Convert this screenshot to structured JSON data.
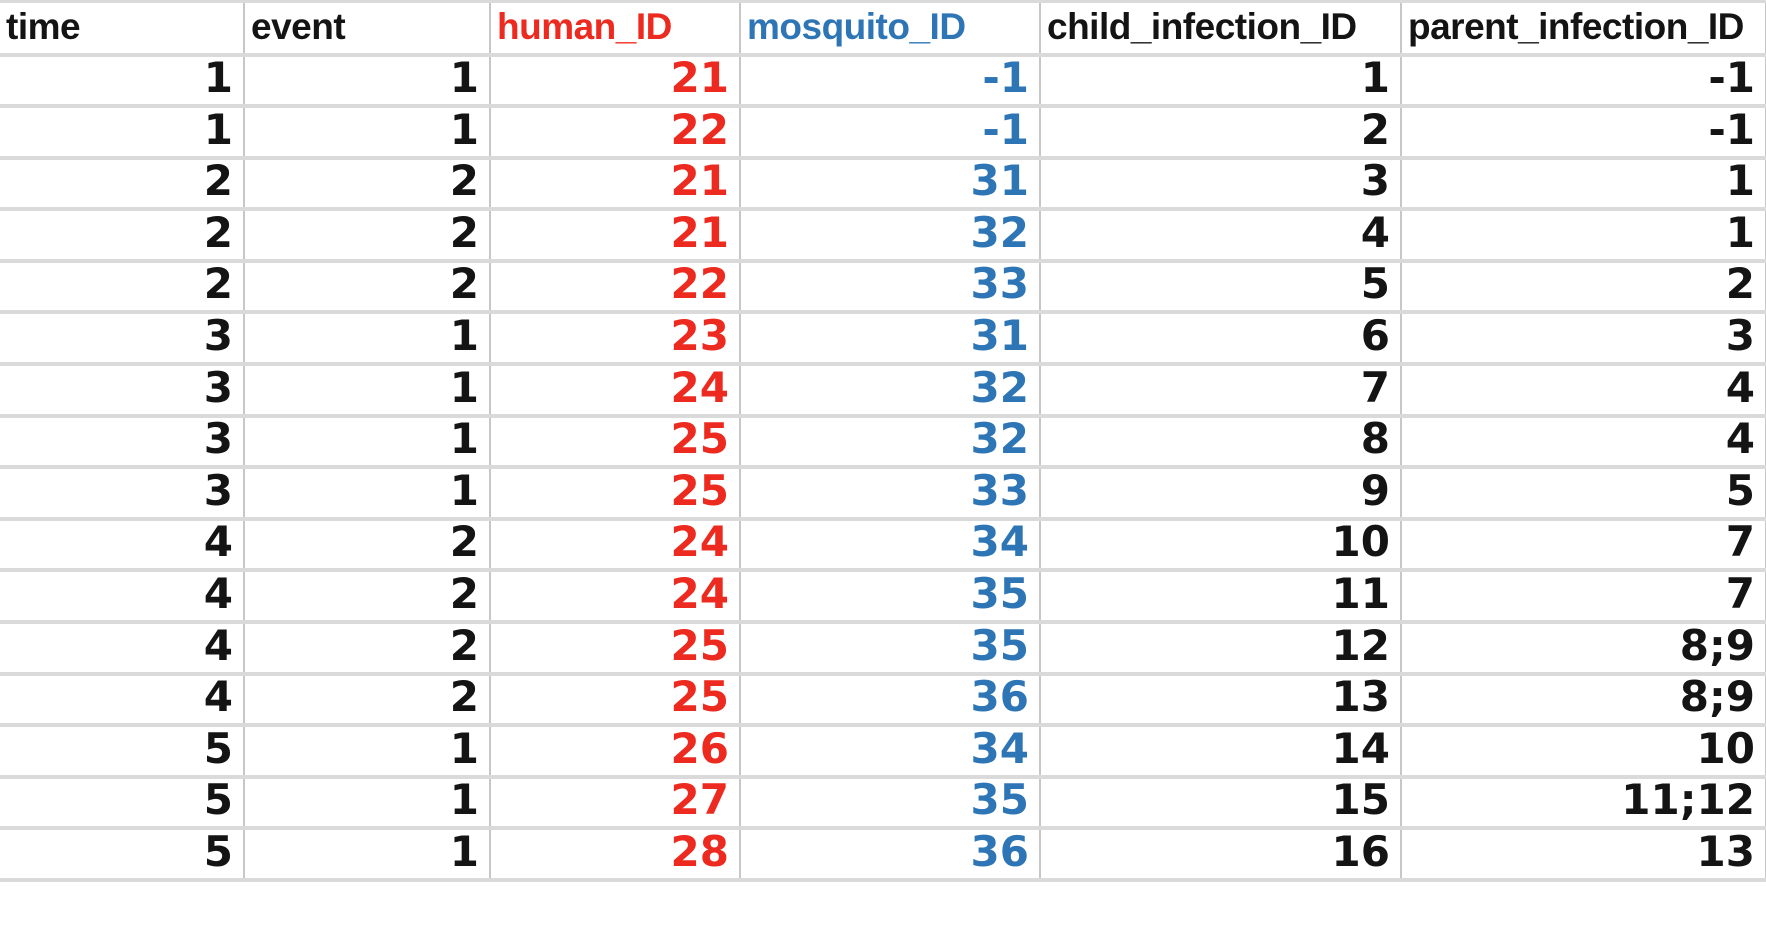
{
  "colors": {
    "text_default": "#141414",
    "human_id_accent": "#ed2a1f",
    "mosquito_id_accent": "#2e75b6",
    "grid_vertical_line": "#c7c7c7",
    "grid_horizontal_line": "#dadada",
    "background": "#ffffff"
  },
  "table": {
    "columns": [
      {
        "key": "time",
        "label": "time",
        "color": "#141414"
      },
      {
        "key": "event",
        "label": "event",
        "color": "#141414"
      },
      {
        "key": "human_ID",
        "label": "human_ID",
        "color": "#ed2a1f"
      },
      {
        "key": "mosquito_ID",
        "label": "mosquito_ID",
        "color": "#2e75b6"
      },
      {
        "key": "child_infection_ID",
        "label": "child_infection_ID",
        "color": "#141414"
      },
      {
        "key": "parent_infection_ID",
        "label": "parent_infection_ID",
        "color": "#141414"
      }
    ],
    "rows": [
      [
        "1",
        "1",
        "21",
        "-1",
        "1",
        "-1"
      ],
      [
        "1",
        "1",
        "22",
        "-1",
        "2",
        "-1"
      ],
      [
        "2",
        "2",
        "21",
        "31",
        "3",
        "1"
      ],
      [
        "2",
        "2",
        "21",
        "32",
        "4",
        "1"
      ],
      [
        "2",
        "2",
        "22",
        "33",
        "5",
        "2"
      ],
      [
        "3",
        "1",
        "23",
        "31",
        "6",
        "3"
      ],
      [
        "3",
        "1",
        "24",
        "32",
        "7",
        "4"
      ],
      [
        "3",
        "1",
        "25",
        "32",
        "8",
        "4"
      ],
      [
        "3",
        "1",
        "25",
        "33",
        "9",
        "5"
      ],
      [
        "4",
        "2",
        "24",
        "34",
        "10",
        "7"
      ],
      [
        "4",
        "2",
        "24",
        "35",
        "11",
        "7"
      ],
      [
        "4",
        "2",
        "25",
        "35",
        "12",
        "8;9"
      ],
      [
        "4",
        "2",
        "25",
        "36",
        "13",
        "8;9"
      ],
      [
        "5",
        "1",
        "26",
        "34",
        "14",
        "10"
      ],
      [
        "5",
        "1",
        "27",
        "35",
        "15",
        "11;12"
      ],
      [
        "5",
        "1",
        "28",
        "36",
        "16",
        "13"
      ]
    ]
  }
}
